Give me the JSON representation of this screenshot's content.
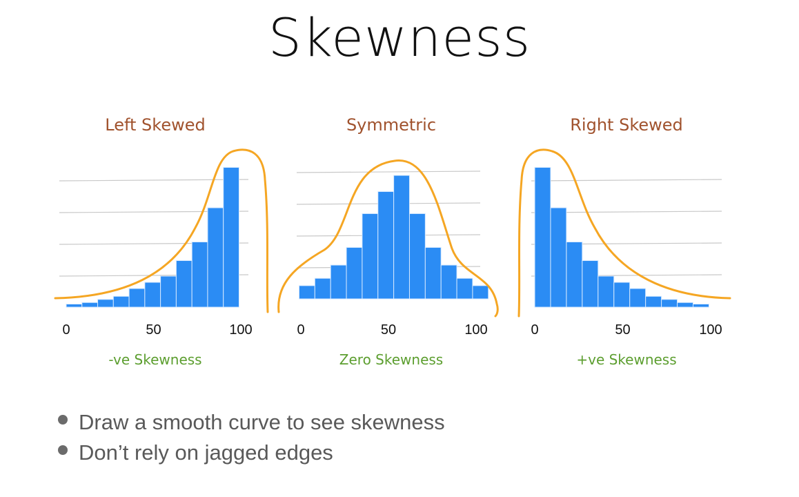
{
  "slide": {
    "title": "Skewness",
    "bullets": [
      "Draw a smooth curve to see skewness",
      "Don’t rely on jagged edges"
    ]
  },
  "colors": {
    "bar": "#2b8cf4",
    "bar_edge": "#d6e9ff",
    "curve": "#f5a623",
    "grid": "#c8c8c8",
    "panel_title": "#a0522d",
    "caption": "#5c9e2f",
    "bullet_text": "#595959"
  },
  "chart_data": [
    {
      "type": "bar",
      "title": "Left Skewed",
      "caption": "-ve Skewness",
      "xticks": [
        "0",
        "50",
        "100"
      ],
      "xlim": [
        0,
        100
      ],
      "ylim": [
        0,
        5
      ],
      "grid": true,
      "bins": [
        {
          "x0": 0,
          "x1": 9,
          "value": 0.1
        },
        {
          "x0": 9,
          "x1": 18,
          "value": 0.15
        },
        {
          "x0": 18,
          "x1": 27,
          "value": 0.25
        },
        {
          "x0": 27,
          "x1": 36,
          "value": 0.35
        },
        {
          "x0": 36,
          "x1": 45,
          "value": 0.6
        },
        {
          "x0": 45,
          "x1": 54,
          "value": 0.8
        },
        {
          "x0": 54,
          "x1": 63,
          "value": 1.0
        },
        {
          "x0": 63,
          "x1": 72,
          "value": 1.5
        },
        {
          "x0": 72,
          "x1": 81,
          "value": 2.1
        },
        {
          "x0": 81,
          "x1": 90,
          "value": 3.2
        },
        {
          "x0": 90,
          "x1": 99,
          "value": 4.5
        }
      ]
    },
    {
      "type": "bar",
      "title": "Symmetric",
      "caption": "Zero Skewness",
      "xticks": [
        "0",
        "50",
        "100"
      ],
      "xlim": [
        0,
        100
      ],
      "ylim": [
        0,
        5
      ],
      "grid": true,
      "bins": [
        {
          "x0": -1,
          "x1": 8,
          "value": 0.45
        },
        {
          "x0": 8,
          "x1": 17,
          "value": 0.7
        },
        {
          "x0": 17,
          "x1": 26,
          "value": 1.15
        },
        {
          "x0": 26,
          "x1": 35,
          "value": 1.75
        },
        {
          "x0": 35,
          "x1": 44,
          "value": 2.9
        },
        {
          "x0": 44,
          "x1": 53,
          "value": 3.65
        },
        {
          "x0": 53,
          "x1": 62,
          "value": 4.2
        },
        {
          "x0": 62,
          "x1": 71,
          "value": 2.9
        },
        {
          "x0": 71,
          "x1": 80,
          "value": 1.75
        },
        {
          "x0": 80,
          "x1": 89,
          "value": 1.15
        },
        {
          "x0": 89,
          "x1": 98,
          "value": 0.7
        },
        {
          "x0": 98,
          "x1": 107,
          "value": 0.45
        }
      ]
    },
    {
      "type": "bar",
      "title": "Right Skewed",
      "caption": "+ve Skewness",
      "xticks": [
        "0",
        "50",
        "100"
      ],
      "xlim": [
        0,
        100
      ],
      "ylim": [
        0,
        5
      ],
      "grid": true,
      "bins": [
        {
          "x0": 0,
          "x1": 9,
          "value": 4.5
        },
        {
          "x0": 9,
          "x1": 18,
          "value": 3.2
        },
        {
          "x0": 18,
          "x1": 27,
          "value": 2.1
        },
        {
          "x0": 27,
          "x1": 36,
          "value": 1.5
        },
        {
          "x0": 36,
          "x1": 45,
          "value": 1.0
        },
        {
          "x0": 45,
          "x1": 54,
          "value": 0.8
        },
        {
          "x0": 54,
          "x1": 63,
          "value": 0.6
        },
        {
          "x0": 63,
          "x1": 72,
          "value": 0.35
        },
        {
          "x0": 72,
          "x1": 81,
          "value": 0.25
        },
        {
          "x0": 81,
          "x1": 90,
          "value": 0.15
        },
        {
          "x0": 90,
          "x1": 99,
          "value": 0.1
        }
      ]
    }
  ]
}
